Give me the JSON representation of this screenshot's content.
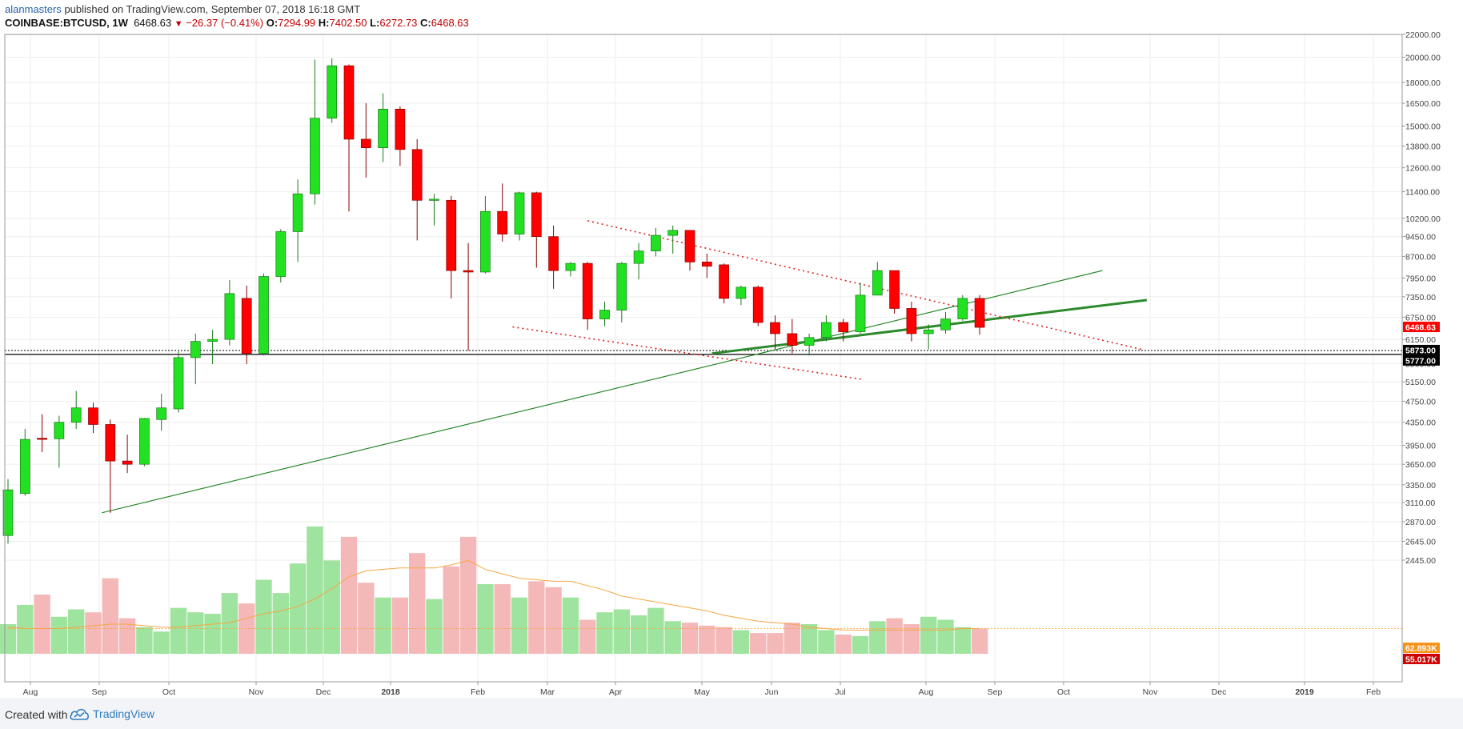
{
  "header": {
    "author": "alanmasters",
    "published": "published on TradingView.com, September 07, 2018 16:18 GMT",
    "symbol": "COINBASE:BTCUSD, 1W",
    "price": "6468.63",
    "change": "−26.37 (−0.41%)",
    "open_label": "O:",
    "open": "7294.99",
    "high_label": "H:",
    "high": "7402.50",
    "low_label": "L:",
    "low": "6272.73",
    "close_label": "C:",
    "close": "6468.63"
  },
  "footer": {
    "created_with": "Created with",
    "brand": "TradingView"
  },
  "colors": {
    "up": "#22e022",
    "down": "#ff0000",
    "vol_up": "#9ee39e",
    "vol_down": "#f4b8b8",
    "ma": "#f7a644",
    "trend": "#2d8a2d",
    "channel": "#e02020",
    "grid": "#eeeeee",
    "axis": "#999999"
  },
  "chart_data": {
    "type": "candlestick",
    "scale": "log",
    "interval": "1W",
    "y_ticks": [
      2445,
      2645,
      2870,
      3110,
      3350,
      3650,
      3950,
      4350,
      4750,
      5150,
      5560,
      6150,
      6750,
      7350,
      7950,
      8700,
      9450,
      10200,
      11400,
      12600,
      13800,
      15000,
      16500,
      18000,
      20000,
      22000
    ],
    "x_ticks": [
      "Aug",
      "Sep",
      "Oct",
      "Nov",
      "Dec",
      "2018",
      "Feb",
      "Mar",
      "Apr",
      "May",
      "Jun",
      "Jul",
      "Aug",
      "Sep",
      "Oct",
      "Nov",
      "Dec",
      "2019",
      "Feb"
    ],
    "price_labels": [
      {
        "text": "6468.63",
        "value": 6468.63,
        "color": "#ff0000"
      },
      {
        "text": "5873.00",
        "value": 5873,
        "color": "#000000"
      },
      {
        "text": "5777.00",
        "value": 5777,
        "color": "#000000"
      }
    ],
    "volume_labels": [
      {
        "text": "62.893K",
        "color": "#f7931a"
      },
      {
        "text": "55.017K",
        "color": "#d00000"
      }
    ],
    "horizontal_lines": [
      5873,
      5777
    ],
    "candles": [
      [
        2710,
        3280,
        2620,
        3430
      ],
      [
        3230,
        4050,
        3200,
        4230
      ],
      [
        4070,
        4060,
        3840,
        4500
      ],
      [
        4060,
        4350,
        3600,
        4470
      ],
      [
        4350,
        4620,
        4230,
        4960
      ],
      [
        4620,
        4310,
        4160,
        4720
      ],
      [
        4310,
        3700,
        2980,
        4400
      ],
      [
        3700,
        3650,
        3520,
        4130
      ],
      [
        3650,
        4420,
        3620,
        4430
      ],
      [
        4400,
        4620,
        4200,
        4900
      ],
      [
        4600,
        5700,
        4530,
        5850
      ],
      [
        5700,
        6100,
        5100,
        6300
      ],
      [
        6100,
        6150,
        5550,
        6400
      ],
      [
        6150,
        7450,
        6000,
        7880
      ],
      [
        7300,
        5800,
        5550,
        7700
      ],
      [
        5800,
        8000,
        5750,
        8100
      ],
      [
        8000,
        9650,
        7800,
        9750
      ],
      [
        9650,
        11300,
        8500,
        12000
      ],
      [
        11300,
        15500,
        10800,
        19800
      ],
      [
        15500,
        19300,
        15200,
        19900
      ],
      [
        19300,
        14200,
        10500,
        19400
      ],
      [
        14200,
        13700,
        12100,
        16500
      ],
      [
        13700,
        16100,
        12900,
        17200
      ],
      [
        16100,
        13600,
        12700,
        16300
      ],
      [
        13600,
        11000,
        9300,
        14200
      ],
      [
        11000,
        11050,
        9900,
        11300
      ],
      [
        11000,
        8200,
        7300,
        11200
      ],
      [
        8200,
        8150,
        5870,
        9200
      ],
      [
        8150,
        10500,
        8100,
        11200
      ],
      [
        10500,
        9550,
        9250,
        11800
      ],
      [
        9550,
        11350,
        9300,
        11400
      ],
      [
        11350,
        9450,
        8300,
        11400
      ],
      [
        9450,
        8200,
        7600,
        9900
      ],
      [
        8200,
        8450,
        8000,
        8500
      ],
      [
        8450,
        6700,
        6400,
        8500
      ],
      [
        6700,
        6950,
        6500,
        7200
      ],
      [
        6950,
        8450,
        6600,
        8500
      ],
      [
        8450,
        8900,
        7900,
        9200
      ],
      [
        8900,
        9500,
        8700,
        9800
      ],
      [
        9500,
        9700,
        8800,
        9900
      ],
      [
        9700,
        8500,
        8200,
        9700
      ],
      [
        8500,
        8350,
        7950,
        8800
      ],
      [
        8400,
        7300,
        7150,
        8450
      ],
      [
        7300,
        7650,
        7100,
        7700
      ],
      [
        7650,
        6600,
        6500,
        7700
      ],
      [
        6600,
        6300,
        5900,
        6800
      ],
      [
        6300,
        6000,
        5800,
        6700
      ],
      [
        6000,
        6200,
        5750,
        6300
      ],
      [
        6200,
        6600,
        6100,
        6800
      ],
      [
        6600,
        6350,
        6100,
        6700
      ],
      [
        6350,
        7400,
        6300,
        7800
      ],
      [
        7400,
        8200,
        7400,
        8500
      ],
      [
        8200,
        7000,
        6850,
        8200
      ],
      [
        7000,
        6300,
        6100,
        7200
      ],
      [
        6300,
        6400,
        5900,
        6550
      ],
      [
        6400,
        6700,
        6300,
        6900
      ],
      [
        6700,
        7300,
        6650,
        7400
      ],
      [
        7300,
        6468.63,
        6272.73,
        7402.5
      ]
    ],
    "volume": [
      20,
      33,
      40,
      25,
      30,
      28,
      51,
      24,
      18,
      15,
      31,
      28,
      27,
      41,
      34,
      50,
      41,
      61,
      86,
      63,
      79,
      48,
      38,
      38,
      68,
      37,
      59,
      79,
      47,
      47,
      38,
      49,
      45,
      38,
      23,
      28,
      30,
      26,
      31,
      22,
      21,
      19,
      18,
      16,
      14,
      14,
      21,
      20,
      16,
      13,
      12,
      22,
      24,
      20,
      25,
      23,
      18,
      17
    ],
    "volume_ma": [
      18,
      17,
      17,
      17,
      18,
      19,
      20,
      20,
      19,
      18,
      18,
      19,
      20,
      21,
      24,
      27,
      29,
      32,
      37,
      44,
      52,
      56,
      57,
      58,
      58,
      58,
      60,
      63,
      57,
      54,
      51,
      50,
      49,
      49,
      46,
      43,
      39,
      37,
      35,
      33,
      31,
      29,
      26,
      24,
      22,
      21,
      20,
      18,
      17,
      16,
      16,
      16,
      16,
      16,
      16,
      16,
      17,
      17
    ],
    "trendlines": [
      {
        "style": "thin",
        "from": [
          0,
          3000
        ],
        "to": [
          18.5,
          8400
        ]
      },
      {
        "style": "thick",
        "from": [
          10.5,
          5800
        ],
        "to": [
          21.5,
          7300
        ]
      },
      {
        "style": "dotted",
        "from": [
          9.6,
          10000
        ],
        "to": [
          20.3,
          5900
        ]
      },
      {
        "style": "dotted",
        "from": [
          8.5,
          6480
        ],
        "to": [
          14.2,
          5250
        ]
      }
    ]
  }
}
